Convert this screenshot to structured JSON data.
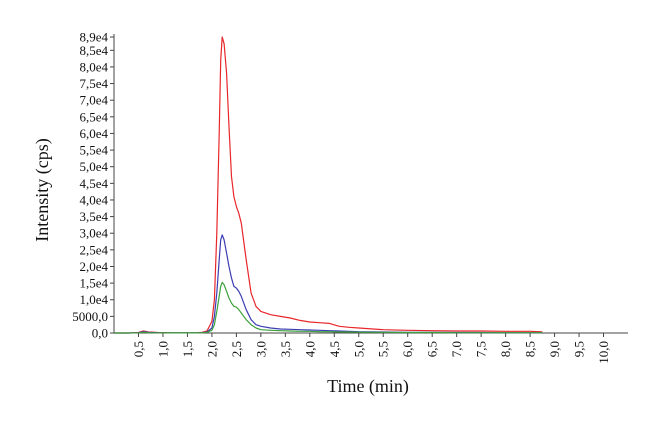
{
  "chart_data": {
    "type": "line",
    "title": "",
    "xlabel": "Time (min)",
    "ylabel": "Intensity (cps)",
    "xlim": [
      0,
      10.5
    ],
    "ylim": [
      0,
      89000
    ],
    "grid": false,
    "legend": "none",
    "x_ticks": [
      0.5,
      1.0,
      1.5,
      2.0,
      2.5,
      3.0,
      3.5,
      4.0,
      4.5,
      5.0,
      5.5,
      6.0,
      6.5,
      7.0,
      7.5,
      8.0,
      8.5,
      9.0,
      9.5,
      10.0
    ],
    "x_tick_labels": [
      "0,5",
      "1,0",
      "1,5",
      "2,0",
      "2,5",
      "3,0",
      "3,5",
      "4,0",
      "4,5",
      "5,0",
      "5,5",
      "6,0",
      "6,5",
      "7,0",
      "7,5",
      "8,0",
      "8,5",
      "9,0",
      "9,5",
      "10,0"
    ],
    "y_ticks": [
      0,
      5000,
      10000,
      15000,
      20000,
      25000,
      30000,
      35000,
      40000,
      45000,
      50000,
      55000,
      60000,
      65000,
      70000,
      75000,
      80000,
      85000,
      89000
    ],
    "y_tick_labels": [
      "0,0",
      "5000,0",
      "1,0e4",
      "1,5e4",
      "2,0e4",
      "2,5e4",
      "3,0e4",
      "3,5e4",
      "4,0e4",
      "4,5e4",
      "5,0e4",
      "5,5e4",
      "6,0e4",
      "6,5e4",
      "7,0e4",
      "7,5e4",
      "8,0e4",
      "8,5e4",
      "8,9e4"
    ],
    "series": [
      {
        "color": "#e8262a",
        "x": [
          0.0,
          0.3,
          0.5,
          0.6,
          0.7,
          0.9,
          1.2,
          1.5,
          1.7,
          1.8,
          1.9,
          2.0,
          2.05,
          2.1,
          2.15,
          2.18,
          2.21,
          2.25,
          2.3,
          2.35,
          2.4,
          2.45,
          2.5,
          2.55,
          2.6,
          2.7,
          2.8,
          2.9,
          3.0,
          3.2,
          3.4,
          3.6,
          3.8,
          4.0,
          4.2,
          4.4,
          4.6,
          4.8,
          5.0,
          5.5,
          6.0,
          6.5,
          7.0,
          7.5,
          8.0,
          8.5,
          8.75
        ],
        "y": [
          0,
          0,
          150,
          600,
          300,
          150,
          50,
          50,
          100,
          200,
          600,
          3500,
          10000,
          30000,
          60000,
          82000,
          89000,
          87000,
          78000,
          62000,
          47000,
          41000,
          38000,
          36000,
          33000,
          22000,
          12000,
          8000,
          6500,
          5500,
          5000,
          4500,
          3800,
          3300,
          3100,
          2900,
          2000,
          1700,
          1500,
          1000,
          800,
          700,
          600,
          600,
          500,
          500,
          350
        ]
      },
      {
        "color": "#3c3cb4",
        "x": [
          0.0,
          0.3,
          0.5,
          0.6,
          0.7,
          0.9,
          1.2,
          1.5,
          1.7,
          1.8,
          1.9,
          2.0,
          2.05,
          2.1,
          2.15,
          2.18,
          2.21,
          2.25,
          2.3,
          2.35,
          2.4,
          2.45,
          2.5,
          2.55,
          2.6,
          2.7,
          2.8,
          2.9,
          3.0,
          3.2,
          3.4,
          3.6,
          3.8,
          4.0,
          4.2,
          4.4,
          4.6,
          4.8,
          5.0,
          5.5,
          6.0,
          6.5,
          7.0,
          7.5,
          8.0,
          8.5,
          8.75
        ],
        "y": [
          0,
          0,
          100,
          400,
          200,
          100,
          30,
          30,
          50,
          100,
          300,
          1500,
          5000,
          12000,
          22000,
          28000,
          29500,
          28000,
          24000,
          20000,
          16500,
          14000,
          13500,
          12500,
          11000,
          7000,
          4000,
          2500,
          2000,
          1500,
          1200,
          1100,
          1000,
          900,
          800,
          700,
          600,
          500,
          400,
          300,
          200,
          200,
          150,
          150,
          100,
          100,
          100
        ]
      },
      {
        "color": "#3ca03c",
        "x": [
          0.0,
          0.3,
          0.5,
          0.6,
          0.7,
          0.9,
          1.2,
          1.5,
          1.7,
          1.8,
          1.9,
          2.0,
          2.05,
          2.1,
          2.15,
          2.18,
          2.21,
          2.25,
          2.3,
          2.35,
          2.4,
          2.45,
          2.5,
          2.55,
          2.6,
          2.7,
          2.8,
          2.9,
          3.0,
          3.2,
          3.4,
          3.6,
          3.8,
          4.0,
          4.2,
          4.4,
          4.6,
          4.8,
          5.0,
          5.5,
          6.0,
          6.5,
          7.0,
          7.5,
          8.0,
          8.5,
          8.75
        ],
        "y": [
          0,
          0,
          50,
          200,
          100,
          50,
          20,
          20,
          30,
          60,
          200,
          800,
          2500,
          6500,
          11000,
          14000,
          15200,
          14500,
          12500,
          10500,
          9000,
          8000,
          7800,
          7000,
          6000,
          4000,
          2500,
          1500,
          1000,
          800,
          700,
          600,
          500,
          500,
          400,
          400,
          300,
          300,
          250,
          200,
          150,
          150,
          100,
          100,
          100,
          100,
          80
        ]
      }
    ]
  }
}
